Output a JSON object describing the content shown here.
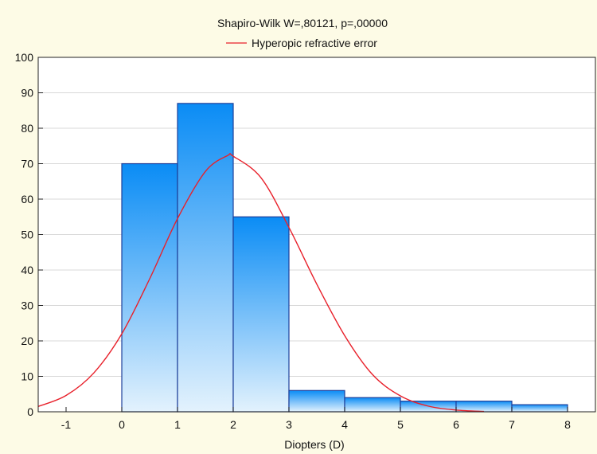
{
  "chart_data": {
    "type": "bar",
    "title": "Shapiro-Wilk W=,80121, p=,00000",
    "xlabel": "Diopters (D)",
    "ylabel": "",
    "xlim": [
      -1.5,
      8.5
    ],
    "ylim": [
      0,
      100
    ],
    "x_ticks": [
      -1,
      0,
      1,
      2,
      3,
      4,
      5,
      6,
      7,
      8
    ],
    "y_ticks": [
      0,
      10,
      20,
      30,
      40,
      50,
      60,
      70,
      80,
      90,
      100
    ],
    "bins": [
      {
        "from": 0,
        "to": 1,
        "value": 70
      },
      {
        "from": 1,
        "to": 2,
        "value": 87
      },
      {
        "from": 2,
        "to": 3,
        "value": 55
      },
      {
        "from": 3,
        "to": 4,
        "value": 6
      },
      {
        "from": 4,
        "to": 5,
        "value": 4
      },
      {
        "from": 5,
        "to": 6,
        "value": 3
      },
      {
        "from": 6,
        "to": 7,
        "value": 3
      },
      {
        "from": 7,
        "to": 8,
        "value": 2
      }
    ],
    "series": [
      {
        "name": "Hyperopic refractive error",
        "type": "line",
        "color": "#e8202a",
        "points": [
          [
            -1.5,
            1.5
          ],
          [
            -1.0,
            4.6
          ],
          [
            -0.5,
            11.0
          ],
          [
            0.0,
            22.0
          ],
          [
            0.5,
            37.5
          ],
          [
            1.0,
            54.5
          ],
          [
            1.5,
            67.8
          ],
          [
            1.9,
            72.3
          ],
          [
            2.0,
            72.1
          ],
          [
            2.5,
            66.0
          ],
          [
            3.0,
            52.0
          ],
          [
            3.5,
            36.0
          ],
          [
            4.0,
            21.5
          ],
          [
            4.5,
            10.5
          ],
          [
            5.0,
            4.5
          ],
          [
            5.5,
            1.6
          ],
          [
            6.0,
            0.5
          ],
          [
            6.5,
            0.1
          ]
        ]
      }
    ],
    "legend_position": "top-center",
    "grid": {
      "horizontal": true,
      "vertical": false
    },
    "colors": {
      "background": "#fdfbe6",
      "plot_background": "#ffffff",
      "bar_top": "#0a8cf5",
      "bar_bottom": "#e3f2fd",
      "bar_stroke": "#1d3f9a",
      "grid": "#d8d8d8",
      "curve": "#e8202a"
    }
  }
}
